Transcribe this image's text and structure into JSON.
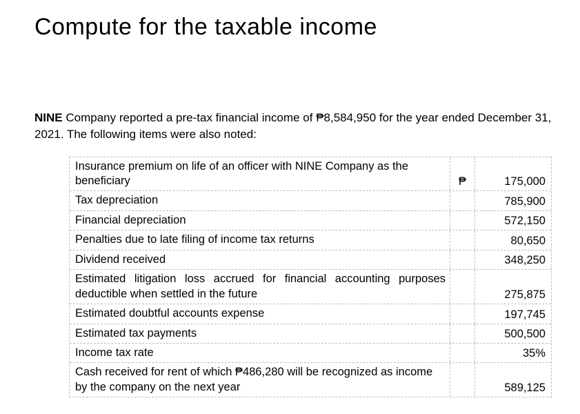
{
  "title": "Compute for the taxable income",
  "intro": {
    "company_bold": "NINE",
    "text_after": " Company reported a pre-tax financial income of ₱8,584,950 for the year ended December 31, 2021.  The following items were also noted:"
  },
  "currency_symbol": "₱",
  "rows": [
    {
      "label": "Insurance premium on life of an officer with NINE Company as the beneficiary",
      "currency": "₱",
      "value": "175,000",
      "multiline": true
    },
    {
      "label": "Tax depreciation",
      "currency": "",
      "value": "785,900"
    },
    {
      "label": "Financial depreciation",
      "currency": "",
      "value": "572,150"
    },
    {
      "label": "Penalties due to late filing of income tax returns",
      "currency": "",
      "value": "80,650"
    },
    {
      "label": "Dividend received",
      "currency": "",
      "value": "348,250"
    },
    {
      "label": "Estimated litigation loss accrued for financial accounting purposes deductible when settled in the future",
      "currency": "",
      "value": "275,875",
      "multiline": true,
      "justify": true
    },
    {
      "label": "Estimated doubtful accounts expense",
      "currency": "",
      "value": "197,745"
    },
    {
      "label": "Estimated tax payments",
      "currency": "",
      "value": "500,500"
    },
    {
      "label": "Income tax rate",
      "currency": "",
      "value": "35%"
    },
    {
      "label": "Cash received for rent of which ₱486,280 will be recognized as income by the company on the next year",
      "currency": "",
      "value": "589,125",
      "multiline": true
    }
  ]
}
